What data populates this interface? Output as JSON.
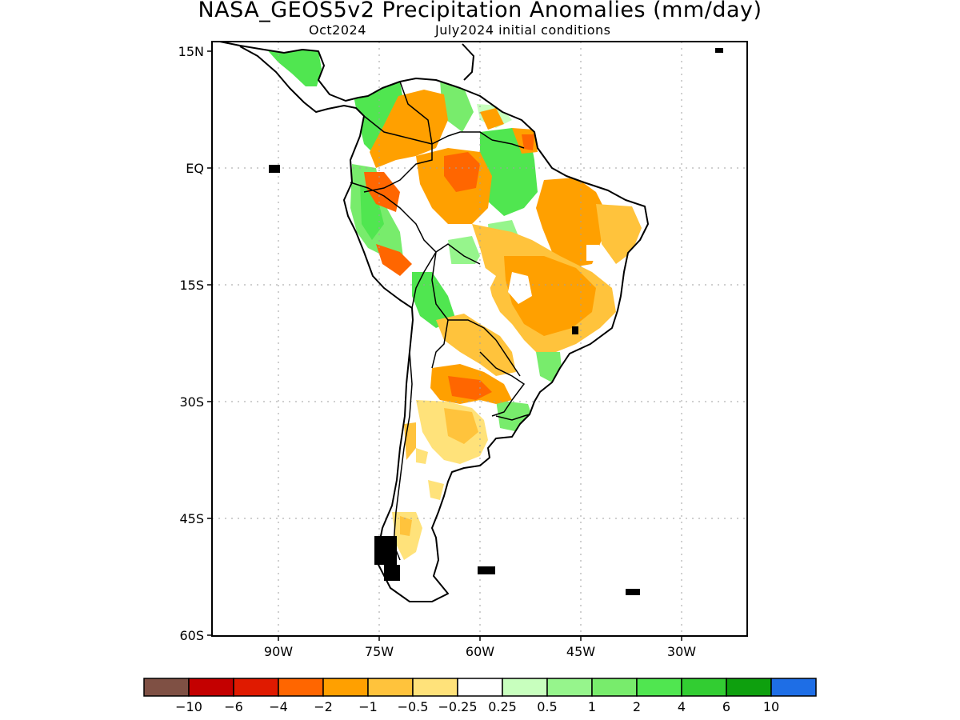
{
  "title": "NASA_GEOS5v2 Precipitation Anomalies (mm/day)",
  "subtitle_left": "Oct2024",
  "subtitle_right": "July2024 initial conditions",
  "map": {
    "lon_range": [
      -97,
      -27
    ],
    "lat_range": [
      -60,
      15
    ],
    "lat_ticks": [
      {
        "value": 15,
        "label": "15N"
      },
      {
        "value": 0,
        "label": "EQ"
      },
      {
        "value": -15,
        "label": "15S"
      },
      {
        "value": -30,
        "label": "30S"
      },
      {
        "value": -45,
        "label": "45S"
      },
      {
        "value": -60,
        "label": "60S"
      }
    ],
    "lon_ticks": [
      {
        "value": -90,
        "label": "90W"
      },
      {
        "value": -75,
        "label": "75W"
      },
      {
        "value": -60,
        "label": "60W"
      },
      {
        "value": -45,
        "label": "45W"
      },
      {
        "value": -30,
        "label": "30W"
      }
    ],
    "grid": "dotted"
  },
  "colorbar": {
    "colors": [
      "#7f5044",
      "#c40000",
      "#e01a00",
      "#ff6600",
      "#ffa000",
      "#ffc33c",
      "#ffe27a",
      "#ffffff",
      "#c8ffbe",
      "#96f58c",
      "#78ec6c",
      "#50e650",
      "#32cd32",
      "#0ea00e",
      "#1e6ee6"
    ],
    "labels": [
      "−10",
      "−6",
      "−4",
      "−2",
      "−1",
      "−0.5",
      "−0.25",
      "0.25",
      "0.5",
      "1",
      "2",
      "4",
      "6",
      "10"
    ]
  },
  "legend_colors": {
    "land_outline": "#000000"
  }
}
